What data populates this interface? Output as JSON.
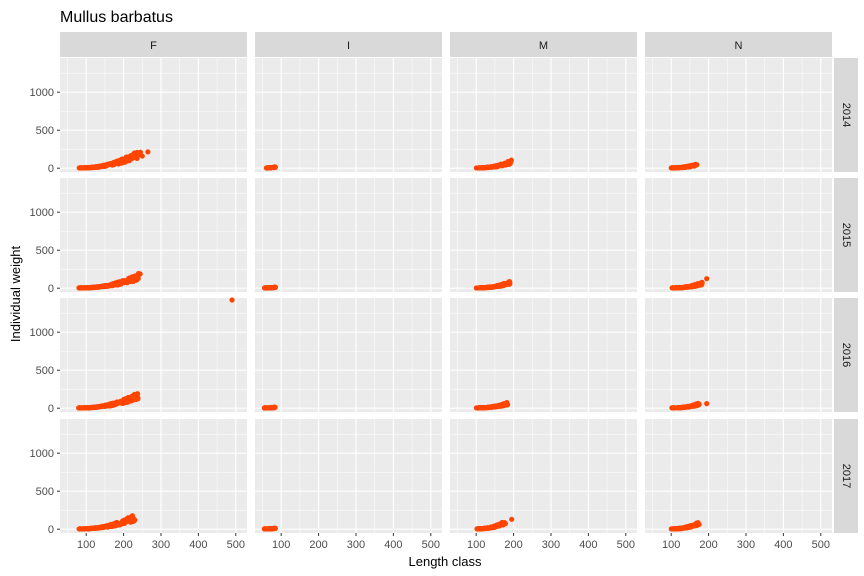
{
  "chart_data": {
    "type": "scatter",
    "title": "Mullus barbatus",
    "xlabel": "Length class",
    "ylabel": "Individual weight",
    "columns": [
      "F",
      "I",
      "M",
      "N"
    ],
    "rows": [
      "2014",
      "2015",
      "2016",
      "2017"
    ],
    "xlim": [
      30,
      530
    ],
    "ylim": [
      -50,
      1450
    ],
    "xticks": [
      100,
      200,
      300,
      400,
      500
    ],
    "yticks": [
      0,
      500,
      1000
    ],
    "point_color": "#FF4500",
    "panels": [
      {
        "row": "2014",
        "col": "F",
        "length_range": [
          80,
          240
        ],
        "weight_max": 240,
        "extra_points": [
          [
            245,
            210
          ],
          [
            265,
            215
          ],
          [
            250,
            160
          ]
        ]
      },
      {
        "row": "2014",
        "col": "I",
        "length_range": [
          60,
          85
        ],
        "weight_max": 20,
        "extra_points": []
      },
      {
        "row": "2014",
        "col": "M",
        "length_range": [
          100,
          195
        ],
        "weight_max": 110,
        "extra_points": []
      },
      {
        "row": "2014",
        "col": "N",
        "length_range": [
          100,
          170
        ],
        "weight_max": 65,
        "extra_points": []
      },
      {
        "row": "2015",
        "col": "F",
        "length_range": [
          80,
          245
        ],
        "weight_max": 210,
        "extra_points": []
      },
      {
        "row": "2015",
        "col": "I",
        "length_range": [
          55,
          85
        ],
        "weight_max": 15,
        "extra_points": []
      },
      {
        "row": "2015",
        "col": "M",
        "length_range": [
          100,
          190
        ],
        "weight_max": 95,
        "extra_points": []
      },
      {
        "row": "2015",
        "col": "N",
        "length_range": [
          100,
          185
        ],
        "weight_max": 85,
        "extra_points": [
          [
            195,
            125
          ]
        ]
      },
      {
        "row": "2016",
        "col": "F",
        "length_range": [
          80,
          240
        ],
        "weight_max": 215,
        "extra_points": [
          [
            490,
            1450
          ]
        ]
      },
      {
        "row": "2016",
        "col": "I",
        "length_range": [
          55,
          85
        ],
        "weight_max": 15,
        "extra_points": []
      },
      {
        "row": "2016",
        "col": "M",
        "length_range": [
          100,
          185
        ],
        "weight_max": 80,
        "extra_points": []
      },
      {
        "row": "2016",
        "col": "N",
        "length_range": [
          100,
          175
        ],
        "weight_max": 70,
        "extra_points": [
          [
            195,
            60
          ]
        ]
      },
      {
        "row": "2017",
        "col": "F",
        "length_range": [
          80,
          230
        ],
        "weight_max": 200,
        "extra_points": []
      },
      {
        "row": "2017",
        "col": "I",
        "length_range": [
          55,
          85
        ],
        "weight_max": 15,
        "extra_points": []
      },
      {
        "row": "2017",
        "col": "M",
        "length_range": [
          100,
          180
        ],
        "weight_max": 120,
        "extra_points": [
          [
            195,
            130
          ]
        ]
      },
      {
        "row": "2017",
        "col": "N",
        "length_range": [
          100,
          175
        ],
        "weight_max": 100,
        "extra_points": []
      }
    ]
  }
}
